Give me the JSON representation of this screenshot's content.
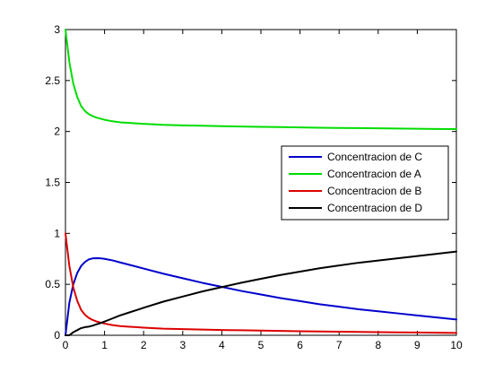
{
  "chart_data": {
    "type": "line",
    "title": "",
    "xlabel": "",
    "ylabel": "",
    "xlim": [
      0,
      10
    ],
    "ylim": [
      0,
      3
    ],
    "x_ticks": [
      0,
      1,
      2,
      3,
      4,
      5,
      6,
      7,
      8,
      9,
      10
    ],
    "y_ticks": [
      0,
      0.5,
      1,
      1.5,
      2,
      2.5,
      3
    ],
    "x_tick_labels": [
      "0",
      "1",
      "2",
      "3",
      "4",
      "5",
      "6",
      "7",
      "8",
      "9",
      "10"
    ],
    "y_tick_labels": [
      "0",
      "0.5",
      "1",
      "1.5",
      "2",
      "2.5",
      "3"
    ],
    "grid": false,
    "legend_position": "right",
    "x": [
      0,
      0.1,
      0.2,
      0.3,
      0.4,
      0.5,
      0.6,
      0.7,
      0.8,
      0.9,
      1.0,
      1.2,
      1.4,
      1.6,
      1.8,
      2.0,
      2.5,
      3.0,
      3.5,
      4.0,
      4.5,
      5.0,
      5.5,
      6.0,
      6.5,
      7.0,
      7.5,
      8.0,
      8.5,
      9.0,
      9.5,
      10.0
    ],
    "series": [
      {
        "name": "Concentracion de C",
        "color": "#0000cc",
        "values": [
          0,
          0.32,
          0.5,
          0.61,
          0.68,
          0.72,
          0.745,
          0.755,
          0.757,
          0.755,
          0.75,
          0.735,
          0.715,
          0.695,
          0.675,
          0.655,
          0.605,
          0.56,
          0.515,
          0.475,
          0.435,
          0.4,
          0.365,
          0.335,
          0.305,
          0.28,
          0.255,
          0.235,
          0.215,
          0.195,
          0.175,
          0.155
        ]
      },
      {
        "name": "Concentracion de A",
        "color": "#00dd00",
        "values": [
          3.0,
          2.68,
          2.47,
          2.34,
          2.25,
          2.2,
          2.17,
          2.15,
          2.135,
          2.125,
          2.115,
          2.1,
          2.09,
          2.085,
          2.08,
          2.075,
          2.065,
          2.06,
          2.056,
          2.052,
          2.049,
          2.046,
          2.043,
          2.04,
          2.037,
          2.035,
          2.033,
          2.031,
          2.029,
          2.027,
          2.025,
          2.023
        ]
      },
      {
        "name": "Concentracion de B",
        "color": "#dd0000",
        "values": [
          1.0,
          0.68,
          0.47,
          0.34,
          0.25,
          0.2,
          0.17,
          0.15,
          0.135,
          0.125,
          0.115,
          0.1,
          0.09,
          0.085,
          0.08,
          0.075,
          0.065,
          0.06,
          0.056,
          0.052,
          0.049,
          0.046,
          0.043,
          0.04,
          0.037,
          0.035,
          0.033,
          0.031,
          0.029,
          0.027,
          0.025,
          0.023
        ]
      },
      {
        "name": "Concentracion de D",
        "color": "#000000",
        "values": [
          0,
          0.0,
          0.03,
          0.05,
          0.07,
          0.08,
          0.085,
          0.095,
          0.108,
          0.12,
          0.135,
          0.165,
          0.195,
          0.22,
          0.245,
          0.27,
          0.33,
          0.38,
          0.43,
          0.473,
          0.516,
          0.554,
          0.592,
          0.625,
          0.658,
          0.685,
          0.712,
          0.734,
          0.756,
          0.778,
          0.8,
          0.822
        ]
      }
    ]
  }
}
